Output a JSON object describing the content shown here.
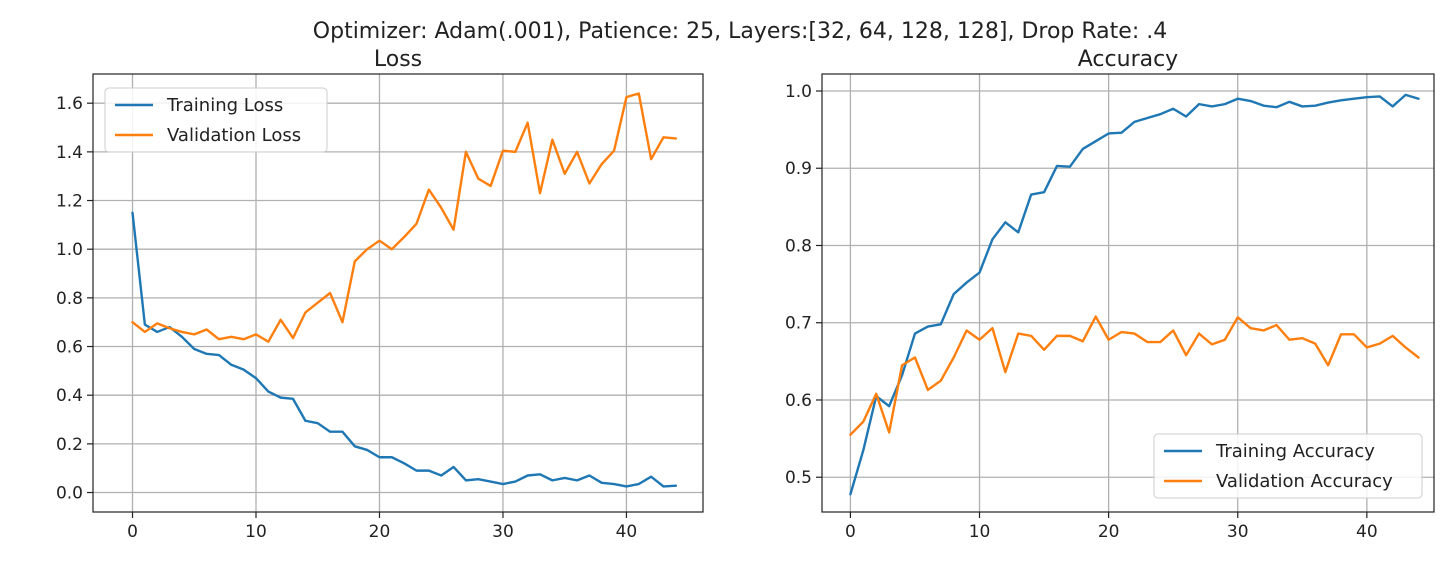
{
  "figure": {
    "suptitle": "Optimizer: Adam(.001), Patience: 25, Layers:[32, 64, 128, 128], Drop Rate: .4"
  },
  "chart_data": [
    {
      "type": "line",
      "title": "Loss",
      "xlabel": "",
      "ylabel": "",
      "xlim": [
        -3.2,
        46.2
      ],
      "ylim": [
        -0.08,
        1.72
      ],
      "xticks": [
        0,
        10,
        20,
        30,
        40
      ],
      "xtick_labels": [
        "0",
        "10",
        "20",
        "30",
        "40"
      ],
      "yticks": [
        0.0,
        0.2,
        0.4,
        0.6,
        0.8,
        1.0,
        1.2,
        1.4,
        1.6
      ],
      "ytick_labels": [
        "0.0",
        "0.2",
        "0.4",
        "0.6",
        "0.8",
        "1.0",
        "1.2",
        "1.4",
        "1.6"
      ],
      "grid": true,
      "legend": "top-left",
      "x": [
        0,
        1,
        2,
        3,
        4,
        5,
        6,
        7,
        8,
        9,
        10,
        11,
        12,
        13,
        14,
        15,
        16,
        17,
        18,
        19,
        20,
        21,
        22,
        23,
        24,
        25,
        26,
        27,
        28,
        29,
        30,
        31,
        32,
        33,
        34,
        35,
        36,
        37,
        38,
        39,
        40,
        41,
        42,
        43,
        44
      ],
      "series": [
        {
          "name": "Training Loss",
          "color": "#1f77b4",
          "values": [
            1.15,
            0.69,
            0.66,
            0.68,
            0.64,
            0.59,
            0.57,
            0.565,
            0.525,
            0.505,
            0.47,
            0.415,
            0.39,
            0.385,
            0.295,
            0.285,
            0.25,
            0.25,
            0.19,
            0.175,
            0.145,
            0.145,
            0.12,
            0.09,
            0.09,
            0.07,
            0.105,
            0.05,
            0.055,
            0.045,
            0.035,
            0.045,
            0.07,
            0.075,
            0.05,
            0.06,
            0.05,
            0.07,
            0.04,
            0.035,
            0.025,
            0.035,
            0.065,
            0.025,
            0.028
          ]
        },
        {
          "name": "Validation Loss",
          "color": "#ff7f0e",
          "values": [
            0.7,
            0.66,
            0.695,
            0.675,
            0.66,
            0.65,
            0.67,
            0.63,
            0.64,
            0.63,
            0.65,
            0.62,
            0.71,
            0.635,
            0.74,
            0.78,
            0.82,
            0.7,
            0.95,
            1.0,
            1.035,
            1.0,
            1.05,
            1.105,
            1.245,
            1.17,
            1.08,
            1.4,
            1.29,
            1.26,
            1.405,
            1.4,
            1.52,
            1.23,
            1.45,
            1.31,
            1.4,
            1.27,
            1.35,
            1.405,
            1.625,
            1.64,
            1.37,
            1.46,
            1.455
          ]
        }
      ]
    },
    {
      "type": "line",
      "title": "Accuracy",
      "xlabel": "",
      "ylabel": "",
      "xlim": [
        -2.2,
        45.2
      ],
      "ylim": [
        0.455,
        1.022
      ],
      "xticks": [
        0,
        10,
        20,
        30,
        40
      ],
      "xtick_labels": [
        "0",
        "10",
        "20",
        "30",
        "40"
      ],
      "yticks": [
        0.5,
        0.6,
        0.7,
        0.8,
        0.9,
        1.0
      ],
      "ytick_labels": [
        "0.5",
        "0.6",
        "0.7",
        "0.8",
        "0.9",
        "1.0"
      ],
      "grid": true,
      "legend": "bottom-right",
      "x": [
        0,
        1,
        2,
        3,
        4,
        5,
        6,
        7,
        8,
        9,
        10,
        11,
        12,
        13,
        14,
        15,
        16,
        17,
        18,
        19,
        20,
        21,
        22,
        23,
        24,
        25,
        26,
        27,
        28,
        29,
        30,
        31,
        32,
        33,
        34,
        35,
        36,
        37,
        38,
        39,
        40,
        41,
        42,
        43,
        44
      ],
      "series": [
        {
          "name": "Training Accuracy",
          "color": "#1f77b4",
          "values": [
            0.478,
            0.535,
            0.605,
            0.592,
            0.632,
            0.686,
            0.695,
            0.698,
            0.737,
            0.752,
            0.765,
            0.808,
            0.83,
            0.817,
            0.866,
            0.869,
            0.903,
            0.902,
            0.925,
            0.935,
            0.945,
            0.946,
            0.96,
            0.965,
            0.97,
            0.977,
            0.967,
            0.983,
            0.98,
            0.983,
            0.99,
            0.987,
            0.981,
            0.979,
            0.986,
            0.98,
            0.981,
            0.985,
            0.988,
            0.99,
            0.992,
            0.993,
            0.98,
            0.995,
            0.99
          ]
        },
        {
          "name": "Validation Accuracy",
          "color": "#ff7f0e",
          "values": [
            0.555,
            0.572,
            0.608,
            0.558,
            0.645,
            0.655,
            0.613,
            0.625,
            0.655,
            0.69,
            0.678,
            0.693,
            0.636,
            0.686,
            0.683,
            0.665,
            0.683,
            0.683,
            0.676,
            0.708,
            0.678,
            0.688,
            0.686,
            0.675,
            0.675,
            0.69,
            0.658,
            0.686,
            0.672,
            0.678,
            0.707,
            0.693,
            0.69,
            0.697,
            0.678,
            0.68,
            0.673,
            0.645,
            0.685,
            0.685,
            0.668,
            0.673,
            0.683,
            0.668,
            0.655
          ]
        }
      ]
    }
  ]
}
